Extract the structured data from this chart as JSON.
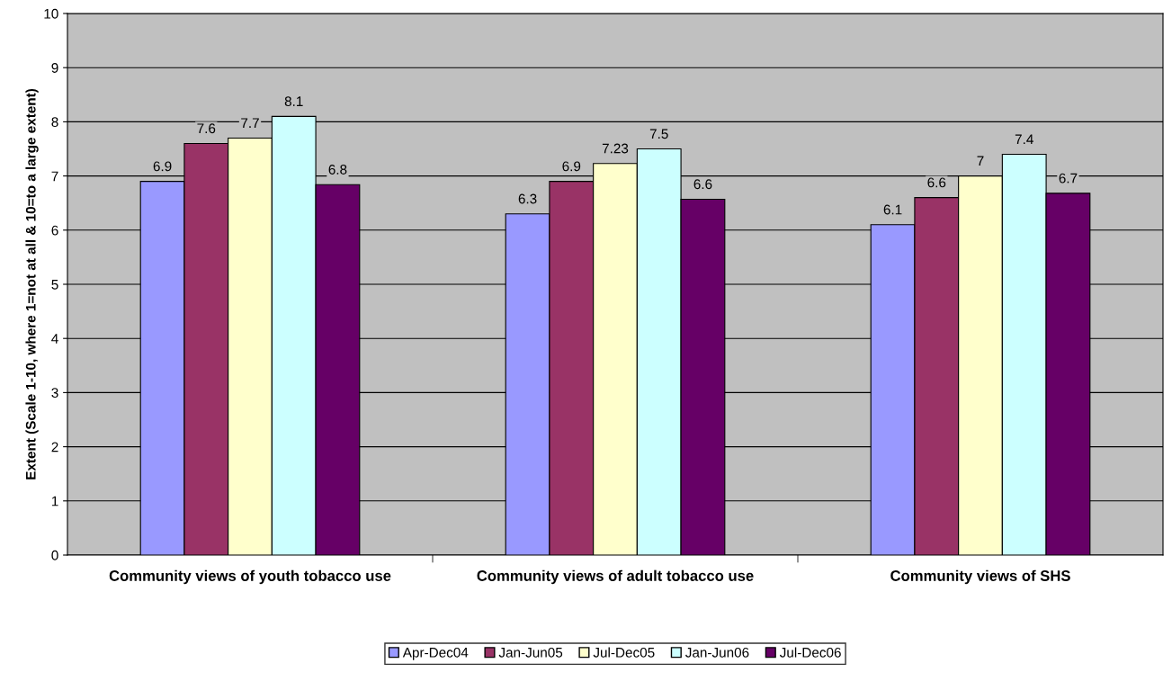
{
  "chart_data": {
    "type": "bar",
    "ylabel": "Extent (Scale 1-10, where 1=not at all & 10=to a large extent)",
    "categories": [
      "Community views of youth tobacco use",
      "Community views of adult tobacco use",
      "Community views of SHS"
    ],
    "series": [
      {
        "name": "Apr-Dec04",
        "color": "#9999ff",
        "values": [
          6.9,
          6.3,
          6.1
        ],
        "value_labels": [
          "6.9",
          "6.3",
          "6.1"
        ]
      },
      {
        "name": "Jan-Jun05",
        "color": "#993366",
        "values": [
          7.6,
          6.9,
          6.6
        ],
        "value_labels": [
          "7.6",
          "6.9",
          "6.6"
        ]
      },
      {
        "name": "Jul-Dec05",
        "color": "#ffffcc",
        "values": [
          7.7,
          7.23,
          7.0
        ],
        "value_labels": [
          "7.7",
          "7.23",
          "7"
        ]
      },
      {
        "name": "Jan-Jun06",
        "color": "#ccffff",
        "values": [
          8.1,
          7.5,
          7.4
        ],
        "value_labels": [
          "8.1",
          "7.5",
          "7.4"
        ]
      },
      {
        "name": "Jul-Dec06",
        "color": "#660066",
        "values": [
          6.84,
          6.57,
          6.68
        ],
        "value_labels": [
          "6.8",
          "6.6",
          "6.7"
        ]
      }
    ],
    "ylim": [
      0,
      10
    ],
    "yticks": [
      0,
      1,
      2,
      3,
      4,
      5,
      6,
      7,
      8,
      9,
      10
    ],
    "grid": "y",
    "legend": "bottom"
  }
}
